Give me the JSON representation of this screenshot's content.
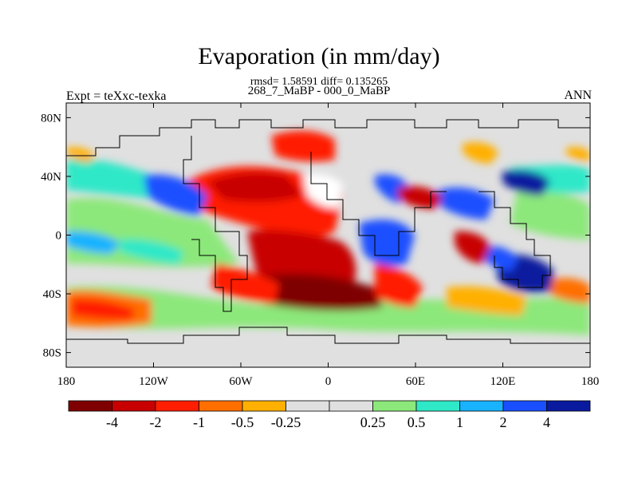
{
  "title": "Evaporation (in mm/day)",
  "subtitle": "rmsd= 1.58591 diff= 0.135265",
  "subtitle2": "268_7_MaBP - 000_0_MaBP",
  "left_label": "Expt = teXxc-texka",
  "right_label": "ANN",
  "map": {
    "lon_range": [
      -180,
      180
    ],
    "lat_range": [
      -90,
      90
    ],
    "x_ticks": [
      "180",
      "120W",
      "60W",
      "0",
      "60E",
      "120E",
      "180"
    ],
    "y_ticks": [
      "80N",
      "40N",
      "0",
      "40S",
      "80S"
    ],
    "background_color": "#e0e0e0"
  },
  "colorbar": {
    "colors": [
      "#7f0000",
      "#c80000",
      "#ff1e00",
      "#ff6f00",
      "#ffb000",
      "#e0e0e0",
      "#e0e0e0",
      "#8ce87a",
      "#2fe8c8",
      "#18b2ff",
      "#1a4fff",
      "#0a1a9e"
    ],
    "labels": [
      "-4",
      "-2",
      "-1",
      "-0.5",
      "-0.25",
      "0.25",
      "0.5",
      "1",
      "2",
      "4"
    ]
  },
  "regions": [
    {
      "color": "#c80000",
      "name": "north-atlantic-negative"
    },
    {
      "color": "#c80000",
      "name": "south-atlantic-negative"
    },
    {
      "color": "#7f0000",
      "name": "south-atlantic-core"
    },
    {
      "color": "#1a4fff",
      "name": "africa-positive"
    },
    {
      "color": "#0a1a9e",
      "name": "australia-positive"
    },
    {
      "color": "#1a4fff",
      "name": "asia-positive"
    },
    {
      "color": "#ff6f00",
      "name": "southern-ocean-pacific"
    },
    {
      "color": "#8ce87a",
      "name": "tropical-pacific"
    }
  ]
}
